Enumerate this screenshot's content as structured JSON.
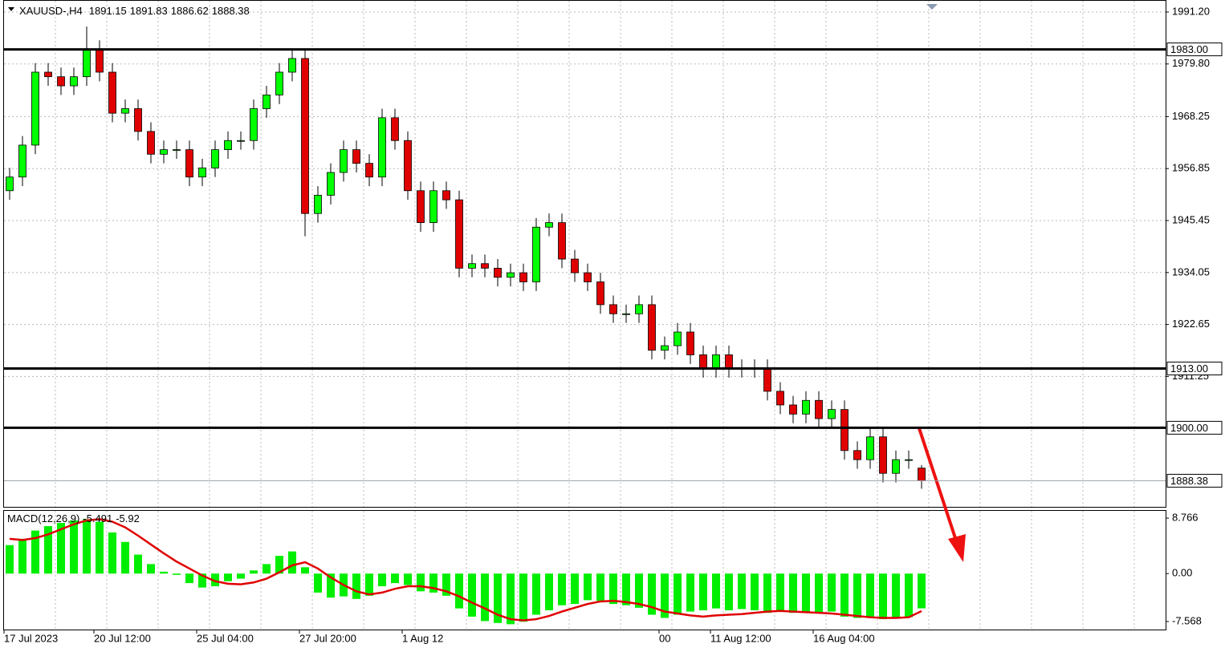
{
  "chart_data": [
    {
      "type": "candlestick",
      "title": "XAUUSD-,H4",
      "open": [
        1952,
        1955,
        1962,
        1978,
        1977,
        1975,
        1977,
        1983,
        1978,
        1969,
        1970,
        1965,
        1960,
        1961,
        1961,
        1955,
        1957,
        1961,
        1963,
        1963,
        1970,
        1973,
        1978,
        1981,
        1947,
        1951,
        1956,
        1961,
        1958,
        1955,
        1968,
        1963,
        1952,
        1945,
        1952,
        1950,
        1935,
        1936,
        1935,
        1933,
        1934,
        1932,
        1944,
        1945,
        1937,
        1934,
        1932,
        1927,
        1925,
        1925,
        1927,
        1917,
        1918,
        1921,
        1916,
        1913,
        1916,
        1913,
        1913,
        1913,
        1908,
        1905,
        1903,
        1906,
        1902,
        1904,
        1895,
        1893,
        1898,
        1890,
        1893,
        1891.15
      ],
      "high": [
        1957,
        1964,
        1980,
        1980,
        1979,
        1979,
        1988,
        1985,
        1980,
        1972,
        1972,
        1967,
        1963,
        1963,
        1963,
        1959,
        1963,
        1965,
        1965,
        1972,
        1975,
        1980,
        1983,
        1983,
        1953,
        1958,
        1963,
        1963,
        1960,
        1970,
        1970,
        1965,
        1954,
        1954,
        1954,
        1952,
        1938,
        1938,
        1937,
        1936,
        1936,
        1946,
        1947,
        1947,
        1939,
        1936,
        1934,
        1929,
        1927,
        1929,
        1929,
        1920,
        1923,
        1923,
        1918,
        1918,
        1918,
        1915,
        1915,
        1915,
        1910,
        1907,
        1908,
        1908,
        1906,
        1906,
        1897,
        1900,
        1900,
        1895,
        1895,
        1891.83
      ],
      "low": [
        1950,
        1953,
        1960,
        1975,
        1973,
        1973,
        1975,
        1976,
        1967,
        1967,
        1963,
        1958,
        1958,
        1959,
        1953,
        1953,
        1955,
        1959,
        1961,
        1961,
        1968,
        1971,
        1976,
        1942,
        1945,
        1949,
        1954,
        1956,
        1953,
        1953,
        1961,
        1950,
        1943,
        1943,
        1948,
        1933,
        1933,
        1933,
        1931,
        1931,
        1930,
        1930,
        1942,
        1935,
        1932,
        1930,
        1925,
        1923,
        1923,
        1923,
        1915,
        1915,
        1916,
        1914,
        1911,
        1911,
        1911,
        1911,
        1911,
        1906,
        1903,
        1901,
        1901,
        1900,
        1900,
        1893,
        1891,
        1891,
        1888,
        1888,
        1891,
        1886.62
      ],
      "close": [
        1955,
        1962,
        1978,
        1977,
        1975,
        1977,
        1983,
        1978,
        1969,
        1970,
        1965,
        1960,
        1961,
        1961,
        1955,
        1957,
        1961,
        1963,
        1963,
        1970,
        1973,
        1978,
        1981,
        1947,
        1951,
        1956,
        1961,
        1958,
        1955,
        1968,
        1963,
        1952,
        1945,
        1952,
        1950,
        1935,
        1936,
        1935,
        1933,
        1934,
        1932,
        1944,
        1945,
        1937,
        1934,
        1932,
        1927,
        1925,
        1925,
        1927,
        1917,
        1918,
        1921,
        1916,
        1913,
        1916,
        1913,
        1913,
        1913,
        1908,
        1905,
        1903,
        1906,
        1902,
        1904,
        1895,
        1893,
        1898,
        1890,
        1893,
        1893,
        1888.38
      ],
      "up_color": "#00ff00",
      "down_color": "#e00000",
      "ylim": [
        1882.65,
        1993.83
      ],
      "yticks": [
        {
          "value": 1991.2,
          "label": "1991.20"
        },
        {
          "value": 1979.8,
          "label": "1979.80"
        },
        1968.25,
        1956.85,
        1945.45,
        1934.05,
        1922.65,
        1911.25
      ],
      "levels": [
        {
          "value": 1983,
          "label": "1983.00"
        },
        {
          "value": 1913,
          "label": "1913.00"
        },
        {
          "value": 1900,
          "label": "1900.00"
        }
      ],
      "xticks": [
        {
          "value": 0,
          "label": "17 Jul 2023"
        },
        {
          "value": 7,
          "label": "20 Jul 12:00"
        },
        {
          "value": 15,
          "label": "25 Jul 04:00"
        },
        {
          "value": 23,
          "label": "27 Jul 20:00"
        },
        {
          "value": 31,
          "label": "1 Aug 12"
        },
        {
          "value": 51,
          "label": "00"
        },
        {
          "value": 55,
          "label": "11 Aug 12:00"
        },
        {
          "value": 63,
          "label": "16 Aug 04:00"
        }
      ],
      "grid": true
    },
    {
      "type": "macd",
      "title": "MACD(12,26,9)",
      "histogram": [
        4.5,
        5.5,
        6.8,
        7.5,
        8,
        8.4,
        8.6,
        8.2,
        6.5,
        5,
        3,
        1.5,
        0.3,
        -0.2,
        -1.5,
        -2.2,
        -2,
        -1.2,
        -0.8,
        0.5,
        1.5,
        2.8,
        3.5,
        1,
        -3,
        -3.8,
        -3.6,
        -4,
        -3.5,
        -2,
        -1.5,
        -1.8,
        -2.8,
        -3,
        -3.5,
        -5.5,
        -6.8,
        -7.5,
        -7.8,
        -8,
        -7.6,
        -6.5,
        -5.8,
        -5,
        -4.8,
        -4.2,
        -4.3,
        -4.8,
        -5,
        -5.4,
        -6.5,
        -7,
        -6.5,
        -6,
        -5.8,
        -5.5,
        -5.8,
        -5.6,
        -5.8,
        -6.2,
        -6,
        -6.2,
        -6,
        -6.1,
        -6,
        -6.8,
        -7,
        -6.8,
        -7.2,
        -7,
        -6.9,
        -5.491
      ],
      "signal": [
        5.5,
        5.3,
        5.6,
        6.2,
        7,
        7.8,
        8.4,
        8.6,
        8.2,
        7.3,
        6,
        4.6,
        3.2,
        1.9,
        0.8,
        -0.3,
        -1.2,
        -1.6,
        -1.7,
        -1.4,
        -0.8,
        0.2,
        1.3,
        1.8,
        0.8,
        -0.6,
        -1.8,
        -2.8,
        -3.3,
        -3,
        -2.4,
        -2,
        -2,
        -2.3,
        -2.8,
        -3.6,
        -4.6,
        -5.5,
        -6.5,
        -7.2,
        -7.4,
        -7.2,
        -6.7,
        -6,
        -5.4,
        -4.8,
        -4.4,
        -4.3,
        -4.5,
        -4.8,
        -5.3,
        -6,
        -6.3,
        -6.6,
        -6.8,
        -6.6,
        -6.5,
        -6.4,
        -6.2,
        -6,
        -5.9,
        -6,
        -6.1,
        -6.2,
        -6.3,
        -6.5,
        -6.7,
        -6.9,
        -7,
        -7,
        -6.9,
        -5.92
      ],
      "histogram_color": "#00ee00",
      "signal_color": "#e00000",
      "ylim": [
        -8.84,
        10.04
      ],
      "yticks": [
        8.766,
        {
          "value": 0,
          "label": "0.00"
        },
        -7.568
      ]
    }
  ]
}
